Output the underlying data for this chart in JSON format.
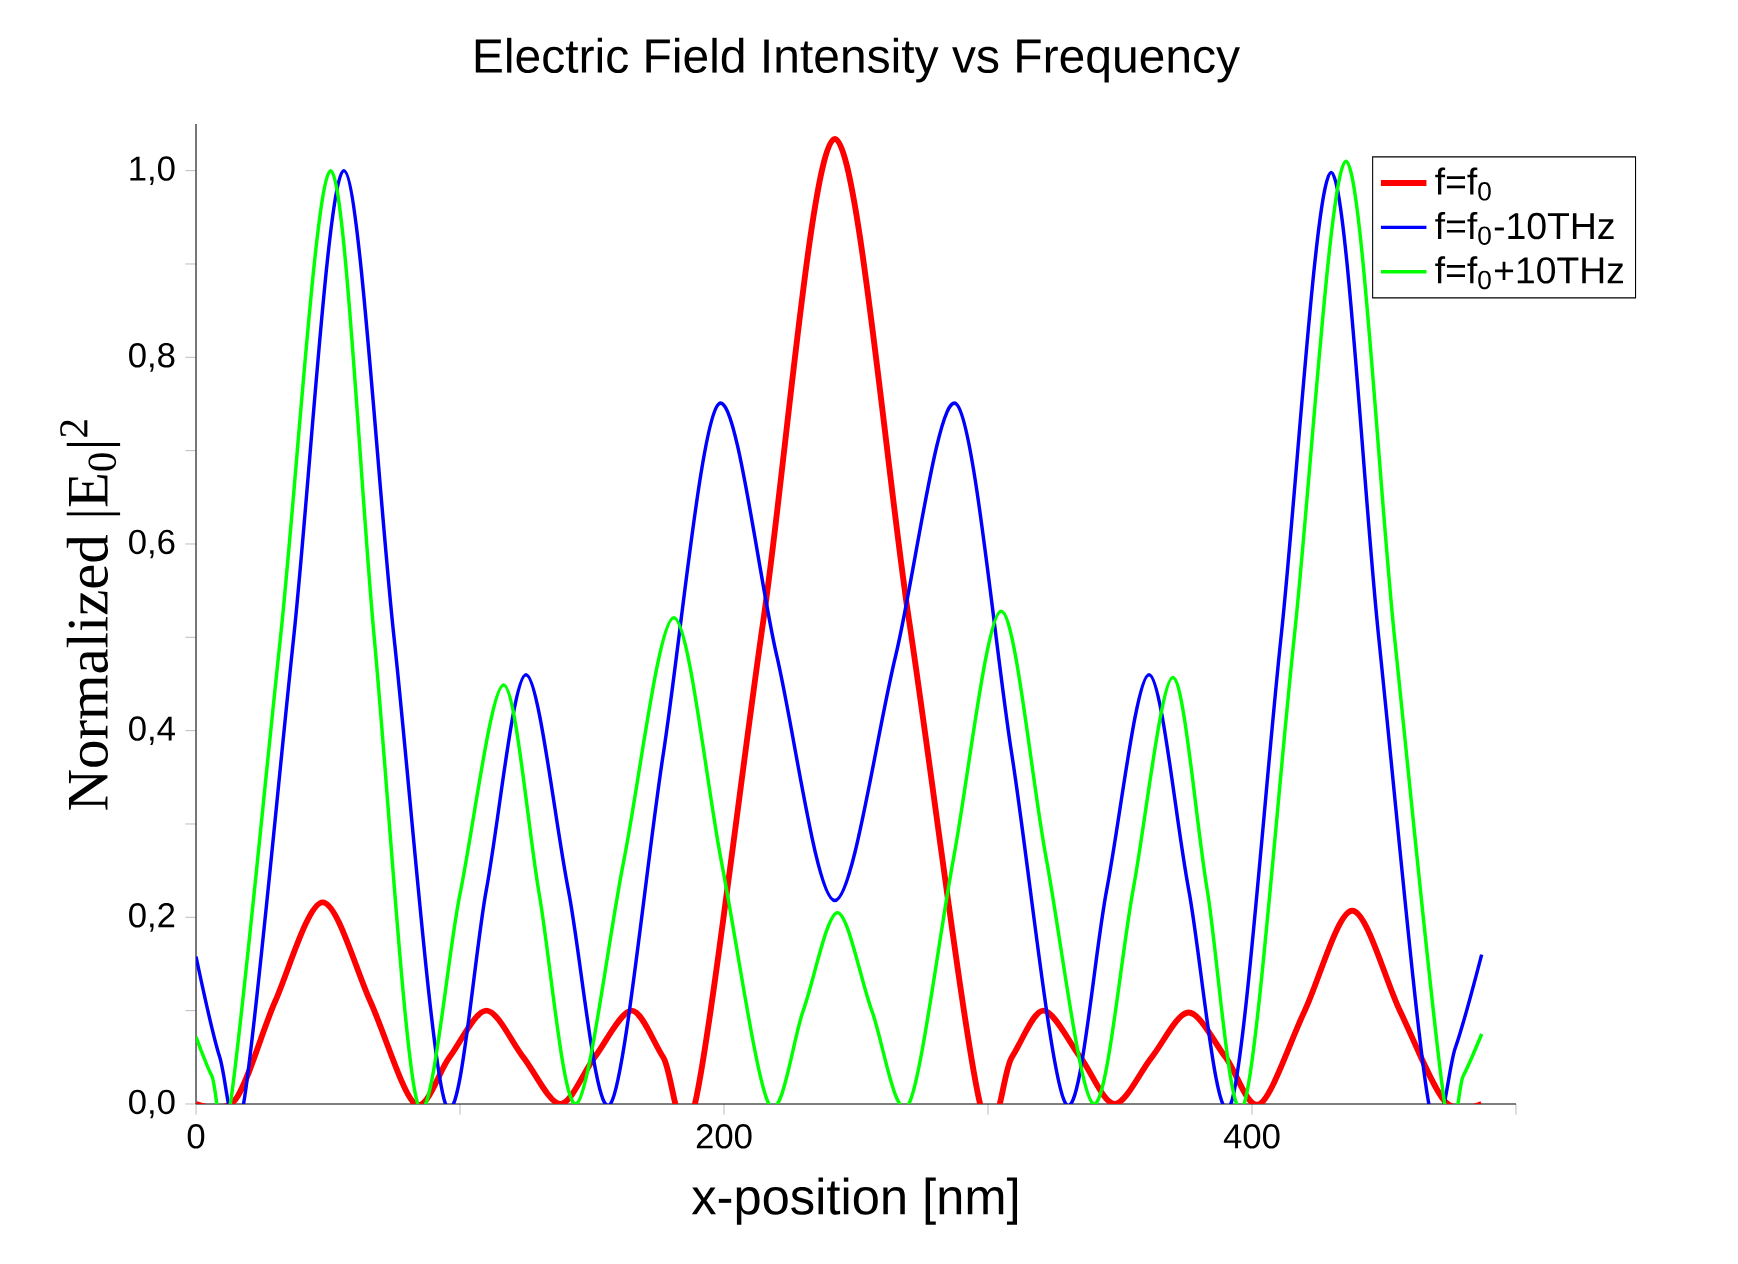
{
  "chart_data": {
    "type": "line",
    "title": "Electric Field Intensity vs Frequency",
    "xlabel": "x-position [nm]",
    "ylabel": "Normalized |E$_{0}$|$^{2}$",
    "xlim": [
      0,
      500
    ],
    "ylim": [
      0,
      1.05
    ],
    "xticks": [
      0,
      {
        "value": 100,
        "label": null
      },
      200,
      {
        "value": 300,
        "label": null
      },
      400,
      {
        "value": 500,
        "label": null
      }
    ],
    "yticks": [
      {
        "value": 0,
        "label": "0,0"
      },
      {
        "value": 0.1,
        "label": null
      },
      {
        "value": 0.2,
        "label": "0,2"
      },
      {
        "value": 0.3,
        "label": null
      },
      {
        "value": 0.4,
        "label": "0,4"
      },
      {
        "value": 0.5,
        "label": null
      },
      {
        "value": 0.6,
        "label": "0,6"
      },
      {
        "value": 0.7,
        "label": null
      },
      {
        "value": 0.8,
        "label": "0,8"
      },
      {
        "value": 0.9,
        "label": null
      },
      {
        "value": 1.0,
        "label": "1,0"
      }
    ],
    "grid": false,
    "legend": "top right",
    "marker": "none",
    "line_style": "solid",
    "series": [
      {
        "name": "f=f$_{0}$",
        "color": "#ff0000",
        "x": [
          0,
          15,
          30,
          48,
          66,
          83,
          96,
          110,
          124,
          138,
          151,
          165,
          177,
          189,
          215,
          242,
          270,
          297,
          309,
          321,
          335,
          348,
          362,
          376,
          390,
          403,
          420,
          438,
          456,
          473,
          487
        ],
        "values": [
          0,
          0.005,
          0.11,
          0.216,
          0.11,
          0,
          0.05,
          0.1,
          0.05,
          0,
          0.05,
          0.1,
          0.05,
          0,
          0.52,
          1.034,
          0.52,
          0,
          0.05,
          0.1,
          0.05,
          0,
          0.05,
          0.098,
          0.05,
          0,
          0.1,
          0.207,
          0.1,
          0.003,
          0
        ]
      },
      {
        "name": "f=f$_{0}$-10THz",
        "color": "#0000ff",
        "x": [
          0,
          9,
          18,
          37,
          56,
          75,
          94.5,
          110,
          125,
          141,
          157,
          177,
          198,
          220,
          242,
          265,
          288,
          309,
          329.5,
          345,
          361,
          376,
          392,
          411,
          430,
          448,
          467,
          477,
          487
        ],
        "values": [
          0.158,
          0.05,
          0,
          0.5,
          1.0,
          0.5,
          0,
          0.23,
          0.46,
          0.23,
          0,
          0.375,
          0.75,
          0.48,
          0.218,
          0.48,
          0.75,
          0.375,
          0,
          0.23,
          0.46,
          0.23,
          0,
          0.5,
          0.998,
          0.5,
          0,
          0.06,
          0.16
        ]
      },
      {
        "name": "f=f$_{0}$+10THz",
        "color": "#00ff00",
        "x": [
          0,
          6,
          13,
          32,
          51,
          67.5,
          84,
          100,
          116.5,
          130,
          144,
          162,
          181,
          199,
          217,
          230,
          243,
          256,
          270,
          287,
          305,
          322,
          340,
          355,
          370,
          383,
          397,
          416,
          435.6,
          454,
          473,
          480,
          487
        ],
        "values": [
          0.072,
          0.03,
          0,
          0.5,
          1.0,
          0.5,
          0,
          0.225,
          0.449,
          0.225,
          0,
          0.26,
          0.521,
          0.26,
          0,
          0.1,
          0.205,
          0.1,
          0,
          0.264,
          0.528,
          0.264,
          0,
          0.23,
          0.457,
          0.23,
          0,
          0.5,
          1.01,
          0.5,
          0,
          0.03,
          0.075
        ]
      }
    ]
  }
}
